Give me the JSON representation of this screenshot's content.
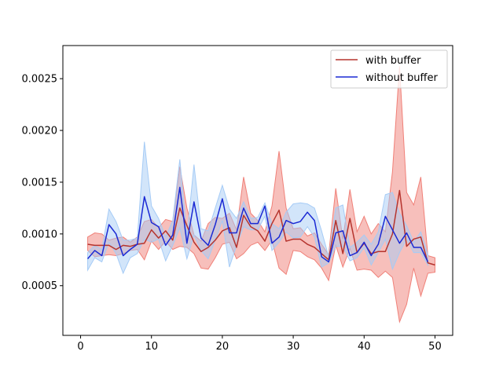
{
  "chart_data": {
    "type": "line",
    "title": "",
    "xlabel": "",
    "ylabel": "",
    "xlim": [
      -2.5,
      52.5
    ],
    "ylim": [
      2e-05,
      0.00282
    ],
    "x_ticks": [
      0,
      10,
      20,
      30,
      40,
      50
    ],
    "x_tick_labels": [
      "0",
      "10",
      "20",
      "30",
      "40",
      "50"
    ],
    "y_ticks": [
      0.0005,
      0.001,
      0.0015,
      0.002,
      0.0025
    ],
    "y_tick_labels": [
      "0.0005",
      "0.0010",
      "0.0015",
      "0.0020",
      "0.0025"
    ],
    "grid": false,
    "legend_position": "top-right",
    "series": [
      {
        "name": "with buffer",
        "color": "#b5342e",
        "band_color": "#f08078",
        "x": [
          1,
          2,
          3,
          4,
          5,
          6,
          7,
          8,
          9,
          10,
          11,
          12,
          13,
          14,
          15,
          16,
          17,
          18,
          19,
          20,
          21,
          22,
          23,
          24,
          25,
          26,
          27,
          28,
          29,
          30,
          31,
          32,
          33,
          34,
          35,
          36,
          37,
          38,
          39,
          40,
          41,
          42,
          43,
          44,
          45,
          46,
          47,
          48,
          49,
          50
        ],
        "values": [
          0.0009,
          0.00089,
          0.00089,
          0.00089,
          0.00085,
          0.00089,
          0.00088,
          0.0009,
          0.00091,
          0.00104,
          0.00096,
          0.00103,
          0.00094,
          0.00125,
          0.00108,
          0.00092,
          0.00083,
          0.00087,
          0.00094,
          0.00103,
          0.00106,
          0.00087,
          0.00118,
          0.00107,
          0.00103,
          0.00093,
          0.0011,
          0.00123,
          0.00093,
          0.00095,
          0.00095,
          0.0009,
          0.00087,
          0.00081,
          0.00075,
          0.00113,
          0.00081,
          0.00115,
          0.00082,
          0.00091,
          0.00081,
          0.00083,
          0.00083,
          0.001,
          0.00142,
          0.00088,
          0.00095,
          0.00097,
          0.00072,
          0.0007
        ],
        "upper": [
          0.00097,
          0.00101,
          0.001,
          0.00094,
          0.00096,
          0.00097,
          0.00092,
          0.00097,
          0.00112,
          0.00114,
          0.00106,
          0.00114,
          0.00112,
          0.00165,
          0.00125,
          0.00099,
          0.00093,
          0.0011,
          0.00116,
          0.00115,
          0.0012,
          0.00104,
          0.00155,
          0.0012,
          0.00113,
          0.00102,
          0.00127,
          0.0018,
          0.00125,
          0.00105,
          0.00106,
          0.00098,
          0.00101,
          0.0009,
          0.0008,
          0.00144,
          0.00095,
          0.00143,
          0.00102,
          0.00117,
          0.001,
          0.0011,
          0.00102,
          0.0016,
          0.00262,
          0.0014,
          0.00128,
          0.00155,
          0.00079,
          0.00077
        ],
        "lower": [
          0.00084,
          0.00078,
          0.00079,
          0.0008,
          0.00079,
          0.00081,
          0.00084,
          0.00085,
          0.00075,
          0.00093,
          0.00085,
          0.00093,
          0.00085,
          0.00088,
          0.00087,
          0.00081,
          0.00067,
          0.00066,
          0.00077,
          0.0009,
          0.00092,
          0.00076,
          0.00081,
          0.00089,
          0.00092,
          0.00084,
          0.00094,
          0.00067,
          0.00061,
          0.00084,
          0.00083,
          0.00078,
          0.00075,
          0.00067,
          0.00055,
          0.00089,
          0.00068,
          0.00086,
          0.00065,
          0.00066,
          0.00065,
          0.00058,
          0.00064,
          0.00058,
          0.00015,
          0.00032,
          0.00067,
          0.0004,
          0.00062,
          0.00063
        ]
      },
      {
        "name": "without buffer",
        "color": "#1a29d4",
        "band_color": "#a5cbf6",
        "x": [
          1,
          2,
          3,
          4,
          5,
          6,
          7,
          8,
          9,
          10,
          11,
          12,
          13,
          14,
          15,
          16,
          17,
          18,
          19,
          20,
          21,
          22,
          23,
          24,
          25,
          26,
          27,
          28,
          29,
          30,
          31,
          32,
          33,
          34,
          35,
          36,
          37,
          38,
          39,
          40,
          41,
          42,
          43,
          44,
          45,
          46,
          47,
          48,
          49
        ],
        "values": [
          0.00076,
          0.00084,
          0.00079,
          0.00109,
          0.001,
          0.00079,
          0.00085,
          0.0009,
          0.00136,
          0.00111,
          0.00107,
          0.00089,
          0.00099,
          0.00145,
          0.00091,
          0.00131,
          0.00096,
          0.00089,
          0.00109,
          0.00134,
          0.00101,
          0.00101,
          0.00125,
          0.0011,
          0.0011,
          0.00127,
          0.00091,
          0.00097,
          0.00113,
          0.0011,
          0.00112,
          0.00121,
          0.00113,
          0.00078,
          0.00073,
          0.00101,
          0.00103,
          0.00079,
          0.00082,
          0.00092,
          0.00079,
          0.0009,
          0.00117,
          0.00104,
          0.00091,
          0.00101,
          0.00087,
          0.00087,
          0.00073
        ],
        "upper": [
          0.00082,
          0.00089,
          0.00085,
          0.00124,
          0.00112,
          0.00094,
          0.00094,
          0.00096,
          0.00189,
          0.00127,
          0.00115,
          0.00097,
          0.00113,
          0.00172,
          0.00098,
          0.00167,
          0.00105,
          0.00103,
          0.00125,
          0.00147,
          0.00124,
          0.00115,
          0.00131,
          0.00115,
          0.00116,
          0.0013,
          0.0011,
          0.00105,
          0.00121,
          0.00129,
          0.0013,
          0.00129,
          0.00125,
          0.00103,
          0.00078,
          0.00125,
          0.00128,
          0.00087,
          0.00092,
          0.00099,
          0.0009,
          0.00102,
          0.00138,
          0.0014,
          0.0012,
          0.00108,
          0.00092,
          0.00102,
          0.0008
        ],
        "lower": [
          0.00065,
          0.00077,
          0.00073,
          0.00092,
          0.00081,
          0.00062,
          0.00077,
          0.00081,
          0.00095,
          0.00092,
          0.00095,
          0.00074,
          0.00089,
          0.00106,
          0.00076,
          0.00099,
          0.00084,
          0.00076,
          0.00094,
          0.00113,
          0.00068,
          0.00089,
          0.00107,
          0.00104,
          0.00104,
          0.00117,
          0.00084,
          0.00092,
          0.00102,
          0.00096,
          0.00097,
          0.00107,
          0.00097,
          0.00068,
          0.00072,
          0.00088,
          0.00088,
          0.00074,
          0.00077,
          0.00087,
          0.0007,
          0.00082,
          0.00095,
          0.00066,
          0.00082,
          0.00095,
          0.00082,
          0.00082,
          0.0007
        ]
      }
    ]
  }
}
